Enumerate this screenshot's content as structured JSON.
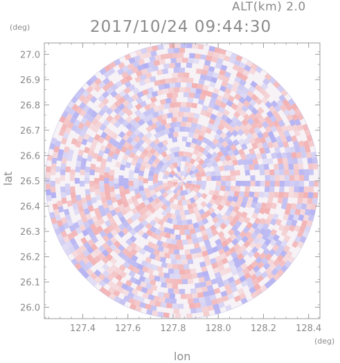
{
  "header": {
    "altitude": "ALT(km) 2.0",
    "timestamp": "2017/10/24 09:44:30"
  },
  "chart_data": {
    "type": "heatmap",
    "title": "2017/10/24 09:44:30",
    "subtitle": "ALT(km) 2.0",
    "xlabel": "lon",
    "ylabel": "lat",
    "x_unit": "(deg)",
    "y_unit": "(deg)",
    "xlim": [
      127.23,
      128.45
    ],
    "ylim": [
      25.955,
      27.045
    ],
    "x_ticks": [
      127.4,
      127.6,
      127.8,
      128.0,
      128.2,
      128.4
    ],
    "x_tick_labels": [
      "127.4",
      "127.6",
      "127.8",
      "128.0",
      "128.2",
      "128.4"
    ],
    "y_ticks": [
      26.0,
      26.1,
      26.2,
      26.3,
      26.4,
      26.5,
      26.6,
      26.7,
      26.8,
      26.9,
      27.0
    ],
    "y_tick_labels": [
      "26.0",
      "26.1",
      "26.2",
      "26.3",
      "26.4",
      "26.5",
      "26.6",
      "26.7",
      "26.8",
      "26.9",
      "27.0"
    ],
    "radar_center": {
      "lon": 127.84,
      "lat": 26.5
    },
    "radar_radius_lon": 0.605,
    "radar_radius_lat": 0.545,
    "colors": {
      "positive": "#f08a8a",
      "negative": "#8a8af0",
      "frame": "#9a9a9a"
    },
    "grid": false,
    "legend": "none"
  }
}
